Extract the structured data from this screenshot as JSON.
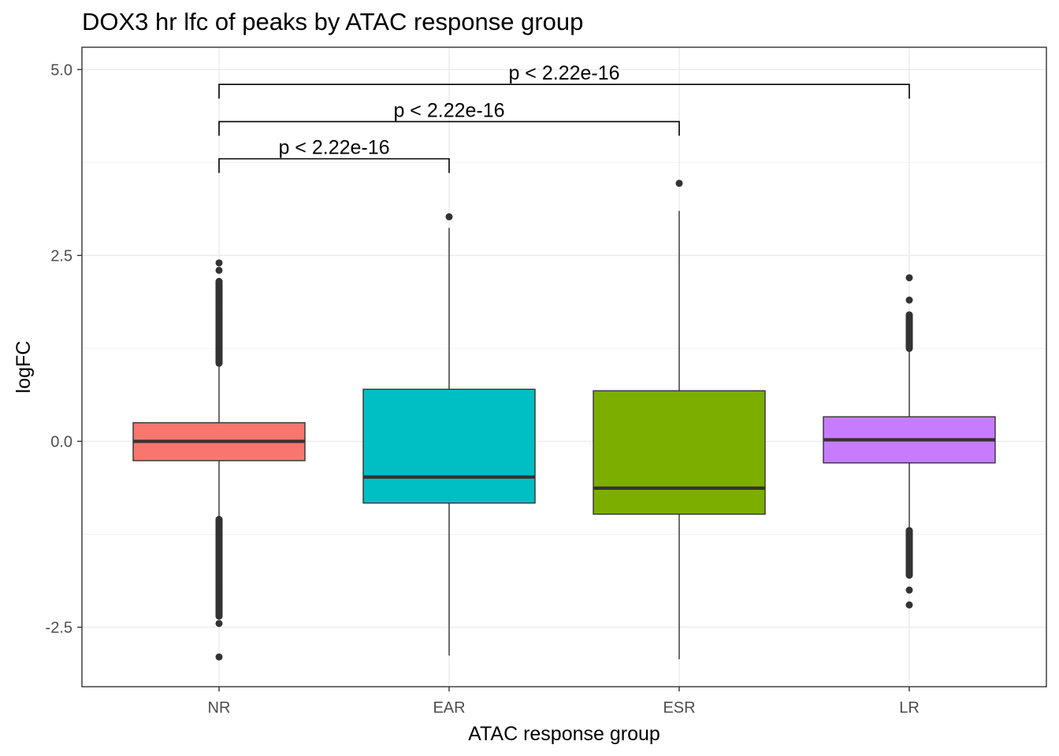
{
  "chart_data": {
    "type": "boxplot",
    "title": "DOX3 hr lfc of peaks by ATAC response group",
    "xlabel": "ATAC response group",
    "ylabel": "logFC",
    "ylim": [
      -3.3,
      5.3
    ],
    "yticks": [
      -2.5,
      0.0,
      2.5,
      5.0
    ],
    "ytick_labels": [
      "-2.5",
      "0.0",
      "2.5",
      "5.0"
    ],
    "grid": true,
    "legend": "none",
    "categories": [
      "NR",
      "EAR",
      "ESR",
      "LR"
    ],
    "boxes": [
      {
        "category": "NR",
        "color": "#F8766D",
        "q1": -0.26,
        "median": 0.0,
        "q3": 0.25,
        "whisker_low": -1.05,
        "whisker_high": 1.05,
        "outliers_high": [
          1.1,
          1.3,
          1.5,
          1.7,
          1.9,
          2.0,
          2.15,
          2.3,
          2.4
        ],
        "outliers_low": [
          -1.1,
          -1.3,
          -1.5,
          -1.7,
          -1.9,
          -2.05,
          -2.2,
          -2.35,
          -2.45,
          -2.9
        ]
      },
      {
        "category": "EAR",
        "color": "#00BFC4",
        "q1": -0.83,
        "median": -0.48,
        "q3": 0.7,
        "whisker_low": -2.88,
        "whisker_high": 2.87,
        "outliers_high": [
          3.02
        ],
        "outliers_low": []
      },
      {
        "category": "ESR",
        "color": "#7CAE00",
        "q1": -0.98,
        "median": -0.63,
        "q3": 0.68,
        "whisker_low": -2.93,
        "whisker_high": 3.1,
        "outliers_high": [
          3.47
        ],
        "outliers_low": []
      },
      {
        "category": "LR",
        "color": "#C77CFF",
        "q1": -0.29,
        "median": 0.02,
        "q3": 0.33,
        "whisker_low": -1.2,
        "whisker_high": 1.25,
        "outliers_high": [
          1.3,
          1.5,
          1.7,
          1.9,
          2.2
        ],
        "outliers_low": [
          -1.25,
          -1.4,
          -1.6,
          -1.8,
          -2.0,
          -2.2
        ]
      }
    ],
    "comparisons": [
      {
        "from": "NR",
        "to": "EAR",
        "y": 3.8,
        "label": "p < 2.22e-16"
      },
      {
        "from": "NR",
        "to": "ESR",
        "y": 4.3,
        "label": "p < 2.22e-16"
      },
      {
        "from": "NR",
        "to": "LR",
        "y": 4.8,
        "label": "p < 2.22e-16"
      }
    ]
  }
}
